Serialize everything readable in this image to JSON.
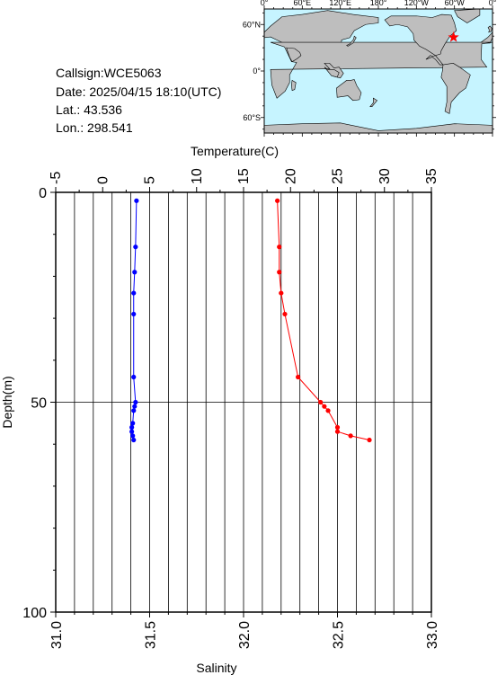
{
  "station": {
    "callsign": "Callsign:WCE5063",
    "date": "Date:  2025/04/15 18:10(UTC)",
    "lat": "Lat.:  43.536",
    "lon": "Lon.:  298.541"
  },
  "map": {
    "lon_labels": [
      "0°",
      "60°E",
      "120°E",
      "180°",
      "120°W",
      "60°W",
      "0°"
    ],
    "lat_labels": [
      "60°N",
      "0°",
      "60°S"
    ],
    "colors": {
      "ocean": "#c6f4ff",
      "land": "#bebebe",
      "marker": "#ff0000"
    },
    "marker": {
      "lon": 298.541,
      "lat": 43.536,
      "symbol": "star"
    }
  },
  "chart_data": {
    "type": "line",
    "title": "",
    "ylabel": "Depth(m)",
    "ylim": [
      0,
      100
    ],
    "y_ticks": [
      "0",
      "50",
      "100"
    ],
    "grid": true,
    "axes": {
      "temperature": {
        "label": "Temperature(C)",
        "position": "top",
        "range": [
          -5,
          35
        ],
        "ticks": [
          "-5",
          "0",
          "5",
          "10",
          "15",
          "20",
          "25",
          "30",
          "35"
        ]
      },
      "salinity": {
        "label": "Salinity",
        "position": "bottom",
        "range": [
          31.0,
          33.0
        ],
        "ticks": [
          "31.0",
          "31.5",
          "32.0",
          "32.5",
          "33.0"
        ]
      }
    },
    "series": [
      {
        "axis": "salinity",
        "color": "#ff0000",
        "points": [
          [
            32.18,
            2
          ],
          [
            32.19,
            13
          ],
          [
            32.19,
            19
          ],
          [
            32.2,
            24
          ],
          [
            32.22,
            29
          ],
          [
            32.29,
            44
          ],
          [
            32.41,
            50
          ],
          [
            32.43,
            51
          ],
          [
            32.45,
            52
          ],
          [
            32.5,
            56
          ],
          [
            32.5,
            57
          ],
          [
            32.57,
            58
          ],
          [
            32.67,
            59
          ]
        ]
      },
      {
        "axis": "temperature",
        "color": "#0000ff",
        "points": [
          [
            3.6,
            2
          ],
          [
            3.5,
            13
          ],
          [
            3.4,
            19
          ],
          [
            3.3,
            24
          ],
          [
            3.3,
            29
          ],
          [
            3.3,
            44
          ],
          [
            3.5,
            50
          ],
          [
            3.4,
            51
          ],
          [
            3.3,
            52
          ],
          [
            3.2,
            55
          ],
          [
            3.1,
            56
          ],
          [
            3.1,
            57
          ],
          [
            3.2,
            58
          ],
          [
            3.3,
            59
          ]
        ]
      }
    ]
  }
}
